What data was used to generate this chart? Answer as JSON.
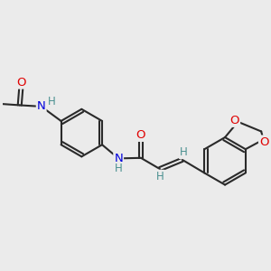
{
  "bg_color": "#ebebeb",
  "bond_color": "#2a2a2a",
  "bond_width": 1.5,
  "dbo": 0.07,
  "atom_colors": {
    "O": "#e00000",
    "N": "#0000dd",
    "H": "#4a9090",
    "C": "#2a2a2a"
  },
  "fs": 9.5,
  "fsH": 8.5
}
